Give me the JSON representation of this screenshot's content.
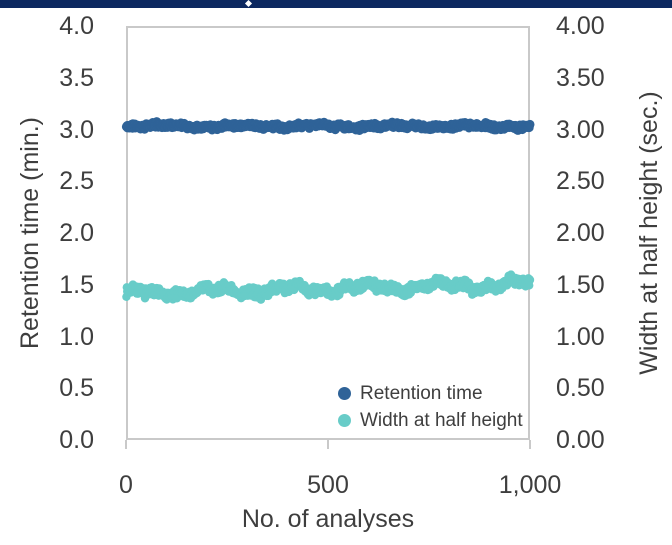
{
  "page": {
    "top_bar_color": "#0c2860",
    "sparkle_color": "#ffffff",
    "background": "#ffffff",
    "text_color": "#3e3e3e",
    "plot_border_color": "#c9c9c9"
  },
  "chart_data": {
    "type": "scatter",
    "title": "",
    "xlabel": "No. of analyses",
    "ylabel_left": "Retention time (min.)",
    "ylabel_right": "Width at half height (sec.)",
    "xlim": [
      0,
      1000
    ],
    "ylim_left": [
      0.0,
      4.0
    ],
    "ylim_right": [
      0.0,
      4.0
    ],
    "grid": false,
    "xticks": {
      "values": [
        0,
        500,
        1000
      ],
      "labels": [
        "0",
        "500",
        "1,000"
      ]
    },
    "yticks_left": {
      "values": [
        4.0,
        3.5,
        3.0,
        2.5,
        2.0,
        1.5,
        1.0,
        0.5,
        0.0
      ],
      "labels": [
        "4.0",
        "3.5",
        "3.0",
        "2.5",
        "2.0",
        "1.5",
        "1.0",
        "0.5",
        "0.0"
      ]
    },
    "yticks_right": {
      "values": [
        4.0,
        3.5,
        3.0,
        2.5,
        2.0,
        1.5,
        1.0,
        0.5,
        0.0
      ],
      "labels": [
        "4.00",
        "3.50",
        "3.00",
        "2.50",
        "2.00",
        "1.50",
        "1.00",
        "0.50",
        "0.00"
      ]
    },
    "legend": {
      "position": "inside-bottom-right"
    },
    "series": [
      {
        "name": "Retention time",
        "axis": "left",
        "color": "#2f6398",
        "marker": "circle",
        "marker_radius_px": 4.5,
        "n_points": 1000,
        "x_start": 1,
        "x_end": 1000,
        "value_start": 3.035,
        "value_end": 3.03,
        "value_noise": 0.03,
        "wave_amp": 0.01,
        "seed": 11
      },
      {
        "name": "Width at half height",
        "axis": "right",
        "color": "#68ccc8",
        "marker": "circle",
        "marker_radius_px": 4.2,
        "n_points": 1000,
        "x_start": 1,
        "x_end": 1000,
        "value_start": 1.415,
        "value_end": 1.51,
        "value_noise": 0.055,
        "wave_amp": 0.03,
        "seed": 7
      }
    ]
  }
}
